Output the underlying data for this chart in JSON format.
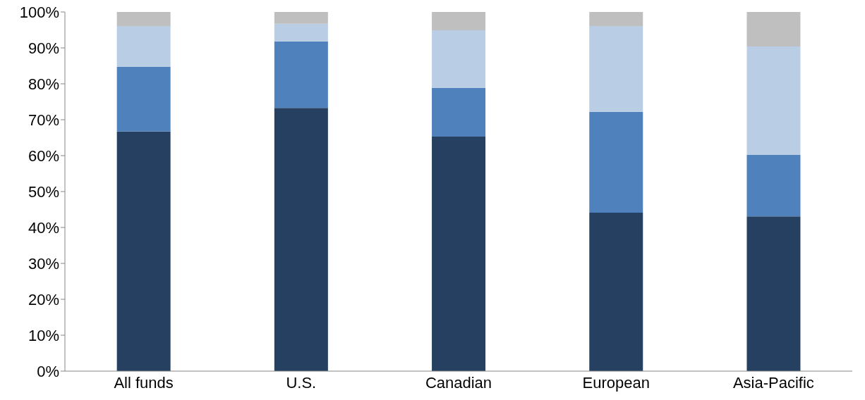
{
  "chart_data": {
    "type": "bar",
    "stacked": true,
    "categories": [
      "All funds",
      "U.S.",
      "Canadian",
      "European",
      "Asia-Pacific"
    ],
    "series": [
      {
        "color": "#264061",
        "values": [
          66.7,
          73.3,
          65.3,
          44.1,
          43.1
        ]
      },
      {
        "color": "#4f81bd",
        "values": [
          18.0,
          18.5,
          13.5,
          28.1,
          17.1
        ]
      },
      {
        "color": "#b9cde5",
        "values": [
          11.4,
          4.9,
          16.1,
          23.9,
          30.2
        ]
      },
      {
        "color": "#bfbfbf",
        "values": [
          3.9,
          3.3,
          5.1,
          3.9,
          9.6
        ]
      }
    ],
    "ylim": [
      0,
      100
    ],
    "yticks": [
      {
        "value": 0,
        "label": "0%"
      },
      {
        "value": 10,
        "label": "10%"
      },
      {
        "value": 20,
        "label": "20%"
      },
      {
        "value": 30,
        "label": "30%"
      },
      {
        "value": 40,
        "label": "40%"
      },
      {
        "value": 50,
        "label": "50%"
      },
      {
        "value": 60,
        "label": "60%"
      },
      {
        "value": 70,
        "label": "70%"
      },
      {
        "value": 80,
        "label": "80%"
      },
      {
        "value": 90,
        "label": "90%"
      },
      {
        "value": 100,
        "label": "100%"
      }
    ],
    "grid": false,
    "legend": false
  }
}
